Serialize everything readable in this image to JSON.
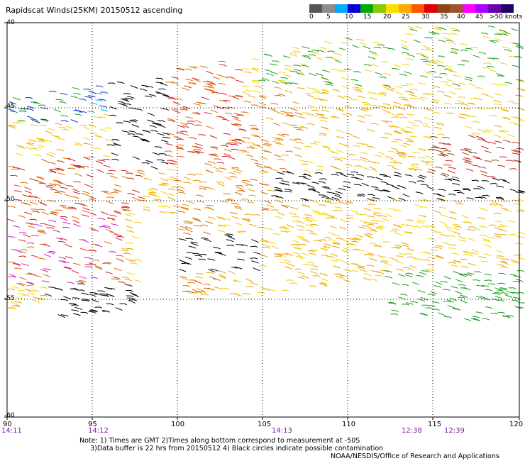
{
  "header": {
    "title": "Rapidscat Winds(25KM) 20150512 ascending"
  },
  "legend": {
    "colors": [
      "#555555",
      "#8c8c8c",
      "#00aaff",
      "#0000dd",
      "#00aa00",
      "#88cc00",
      "#ffdd00",
      "#ffaa00",
      "#ff5500",
      "#dd0000",
      "#8b4513",
      "#a0522d",
      "#ff00ff",
      "#aa00ff",
      "#6600aa",
      "#220066"
    ],
    "labels": [
      "0",
      "5",
      "10",
      "15",
      "20",
      "25",
      "30",
      "35",
      "40",
      "45",
      ">50 knots"
    ]
  },
  "map": {
    "lon_ticks": [
      "90",
      "95",
      "100",
      "105",
      "110",
      "115",
      "120"
    ],
    "lat_ticks": [
      "-40",
      "-45",
      "-50",
      "-55",
      "-60"
    ],
    "times": [
      "14:11",
      "14:12",
      "14:13",
      "12:38",
      "12:39"
    ]
  },
  "notes": {
    "line1": "Note: 1) Times are GMT 2)Times along bottom correspond to measurement at -50S",
    "line2": "3)Data buffer is 22 hrs from 20150512 4) Black circles indicate possible contamination",
    "credit": "NOAA/NESDIS/Office of Research and Applications"
  }
}
